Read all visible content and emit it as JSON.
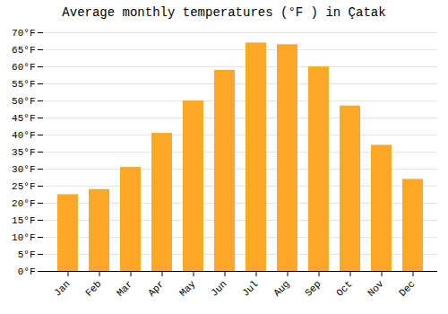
{
  "chart_data": {
    "type": "bar",
    "title": "Average monthly temperatures (°F ) in Çatak",
    "categories": [
      "Jan",
      "Feb",
      "Mar",
      "Apr",
      "May",
      "Jun",
      "Jul",
      "Aug",
      "Sep",
      "Oct",
      "Nov",
      "Dec"
    ],
    "values": [
      22.5,
      24.0,
      30.5,
      40.5,
      50.0,
      59.0,
      67.0,
      66.5,
      60.0,
      48.5,
      37.0,
      27.0
    ],
    "color": "#FFA726",
    "ylim": [
      0,
      70
    ],
    "yticks": [
      {
        "value": 0,
        "label": "0°F"
      },
      {
        "value": 5,
        "label": "5°F"
      },
      {
        "value": 10,
        "label": "10°F"
      },
      {
        "value": 15,
        "label": "15°F"
      },
      {
        "value": 20,
        "label": "20°F"
      },
      {
        "value": 25,
        "label": "25°F"
      },
      {
        "value": 30,
        "label": "30°F"
      },
      {
        "value": 35,
        "label": "35°F"
      },
      {
        "value": 40,
        "label": "40°F"
      },
      {
        "value": 45,
        "label": "45°F"
      },
      {
        "value": 50,
        "label": "50°F"
      },
      {
        "value": 55,
        "label": "55°F"
      },
      {
        "value": 60,
        "label": "60°F"
      },
      {
        "value": 65,
        "label": "65°F"
      },
      {
        "value": 70,
        "label": "70°F"
      }
    ],
    "grid": true
  }
}
